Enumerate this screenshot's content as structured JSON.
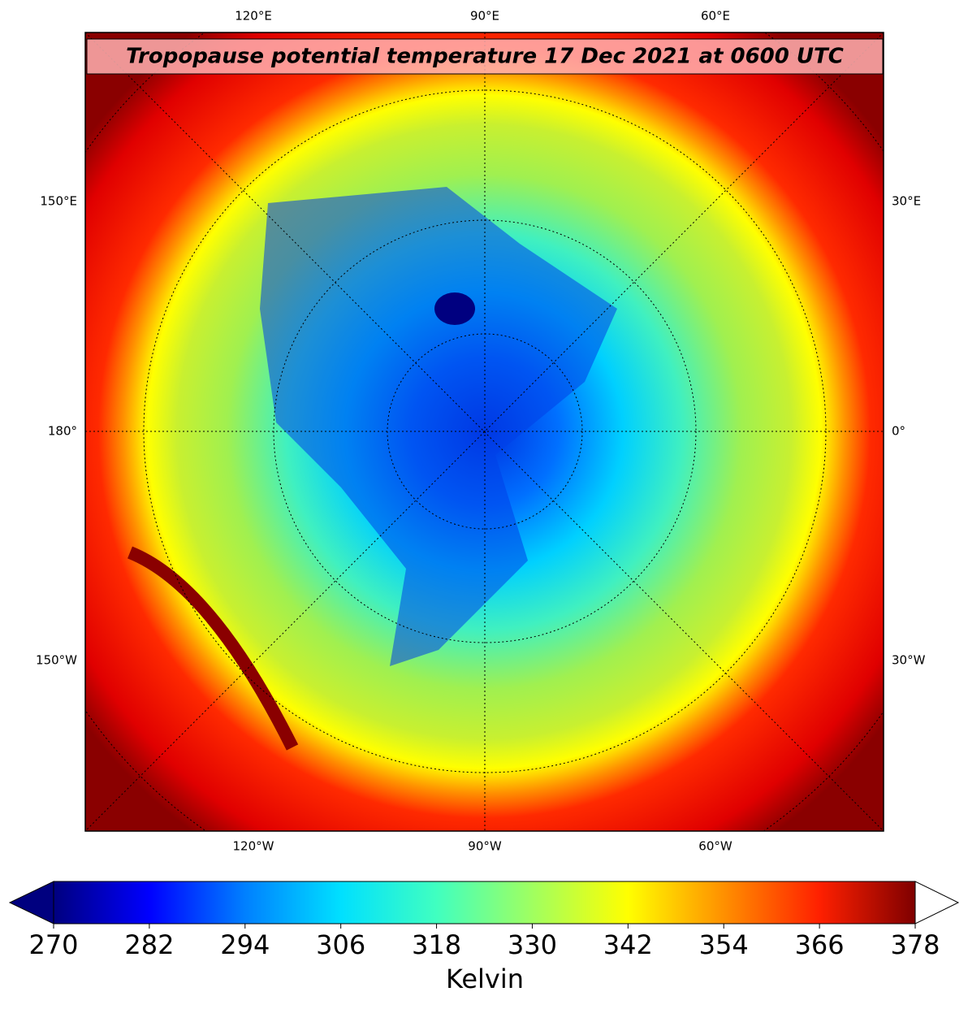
{
  "title": "Tropopause potential temperature 17 Dec 2021 at 0600 UTC",
  "lon_labels": {
    "top": [
      "120°E",
      "90°E",
      "60°E"
    ],
    "bottom": [
      "120°W",
      "90°W",
      "60°W"
    ],
    "left": [
      "150°E",
      "180°",
      "150°W"
    ],
    "right": [
      "30°E",
      "0°",
      "30°W"
    ]
  },
  "colorbar": {
    "label": "Kelvin",
    "lim": [
      270,
      378
    ],
    "ticks": [
      270,
      282,
      294,
      306,
      318,
      330,
      342,
      354,
      366,
      378
    ],
    "colormap": [
      "#00007f",
      "#0000ff",
      "#0080ff",
      "#00e0ff",
      "#40ffc0",
      "#a0ff60",
      "#ffff00",
      "#ff9000",
      "#ff2000",
      "#7f0000"
    ],
    "extend_low_color": "#00007f",
    "extend_high_color": "#ffffff"
  }
}
